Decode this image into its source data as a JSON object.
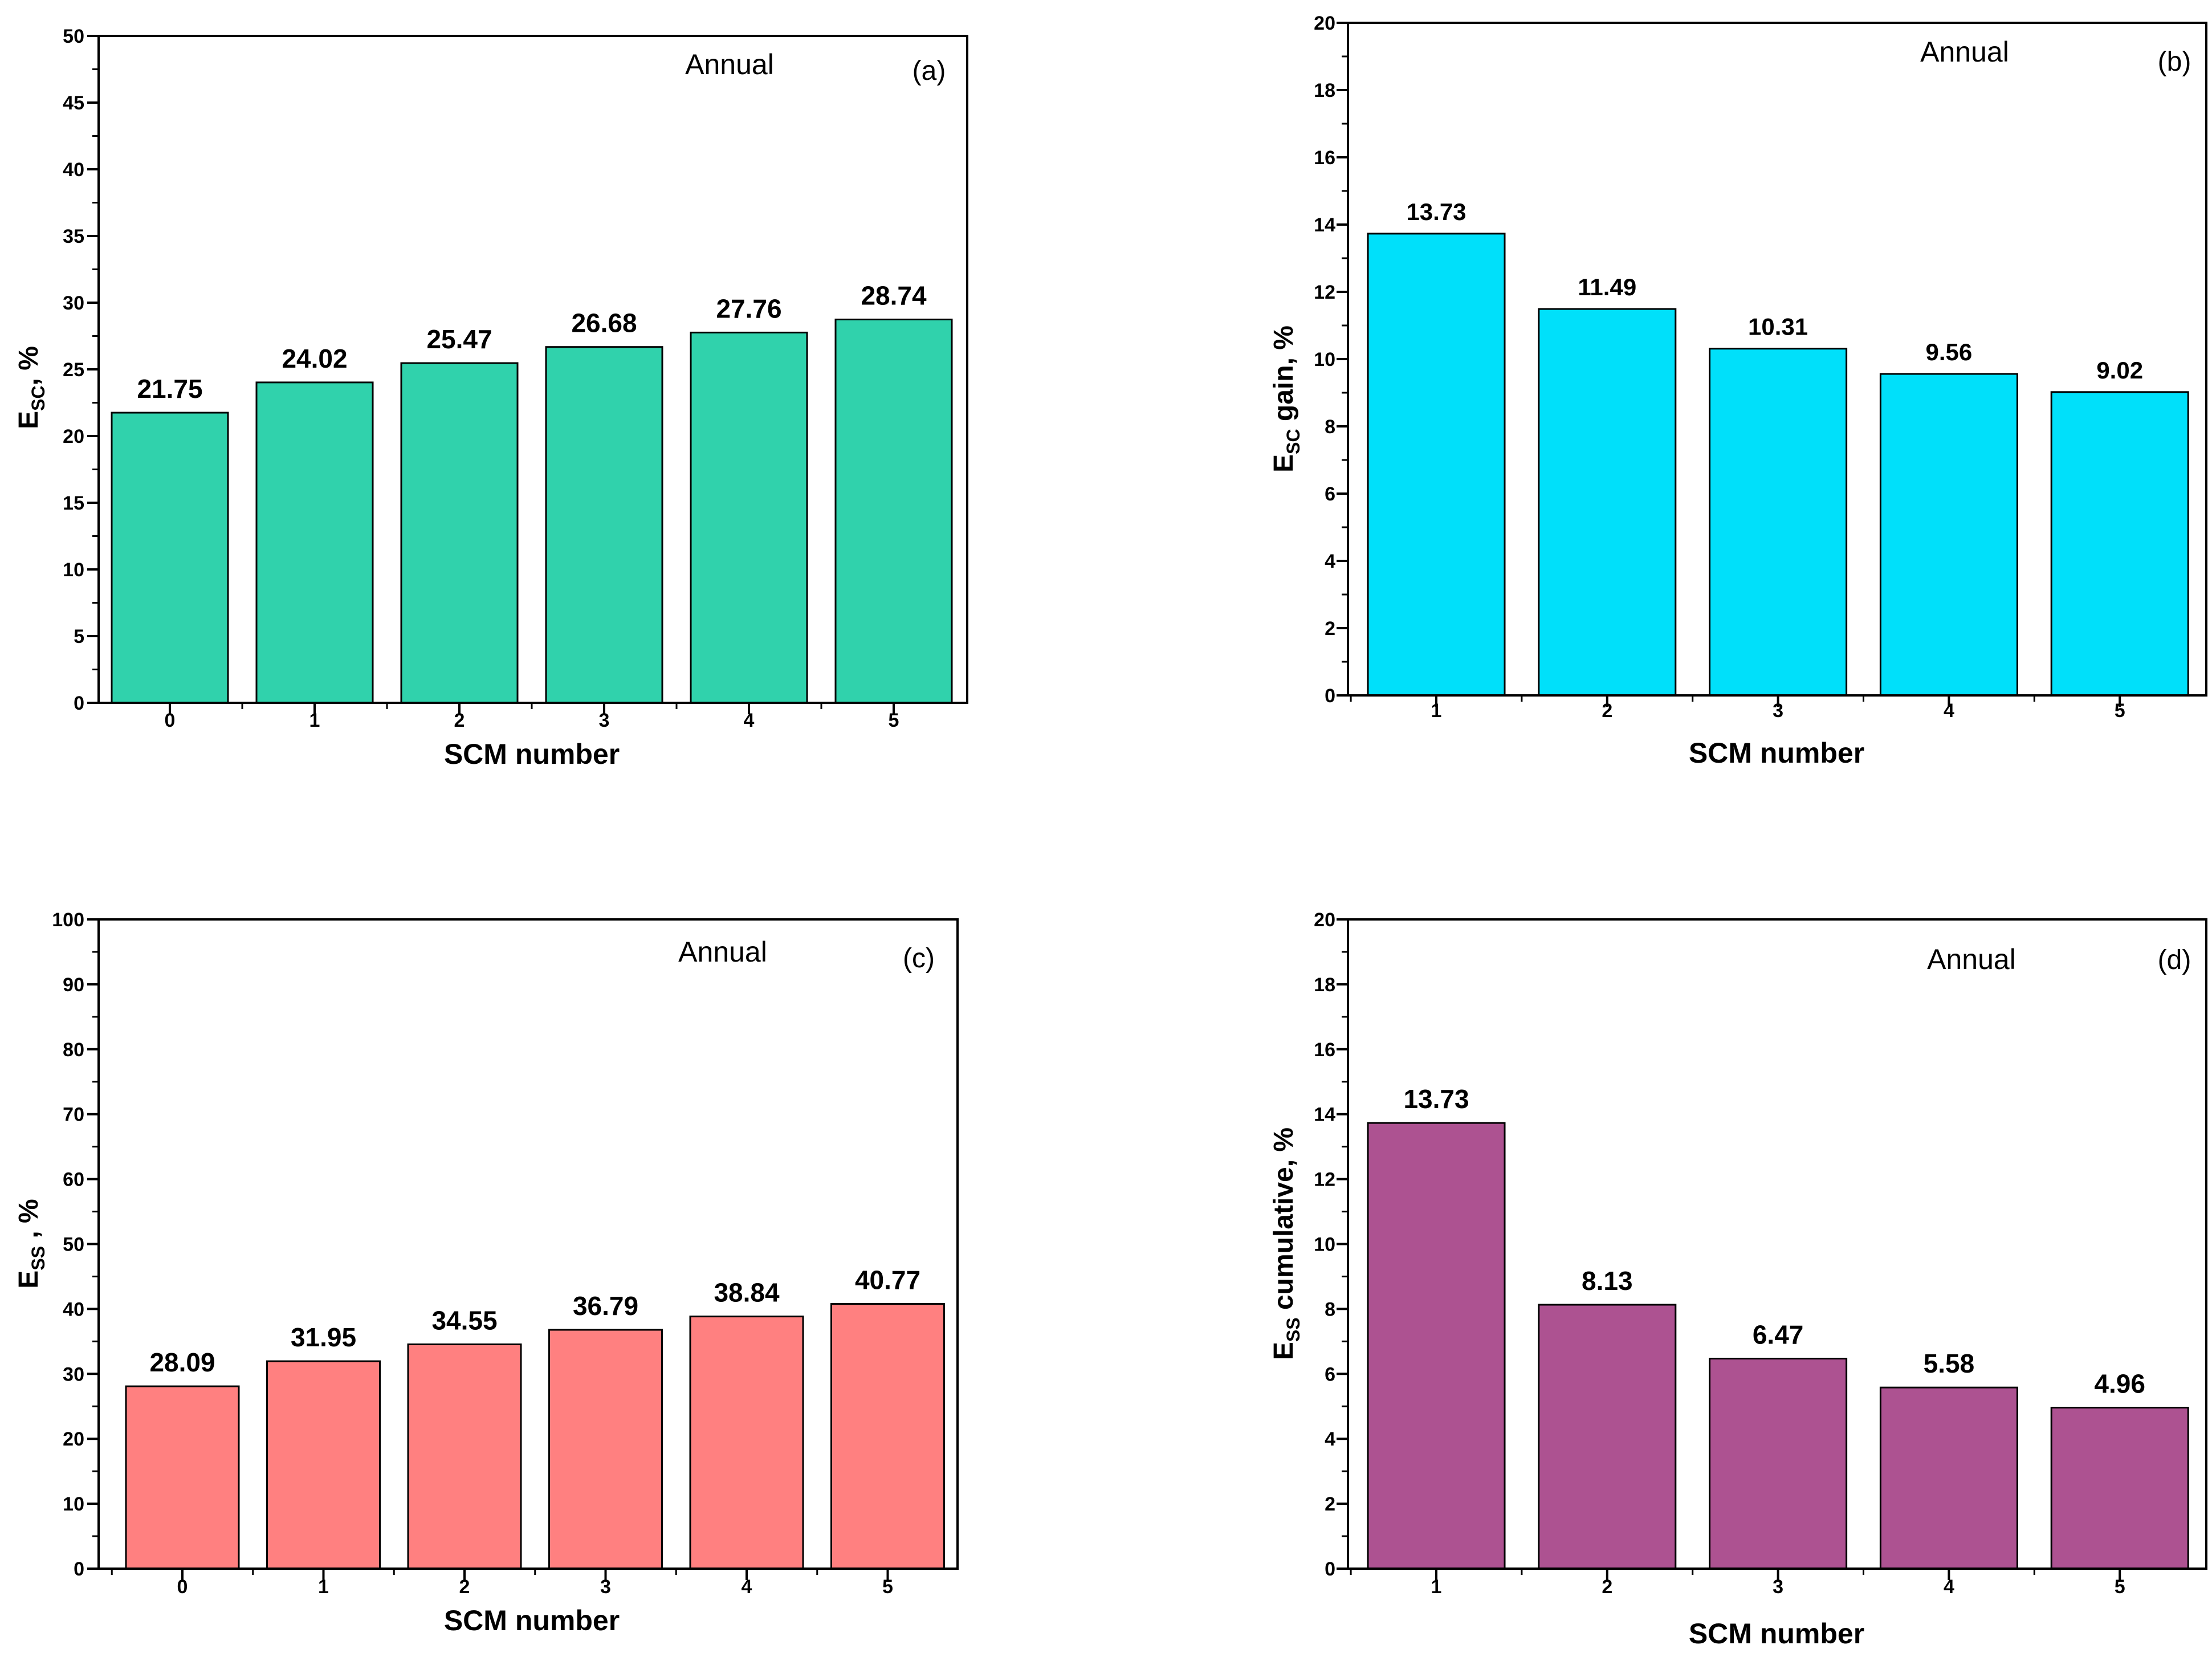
{
  "chart_data": [
    {
      "id": "a",
      "type": "bar",
      "panel_label": "(a)",
      "annotation": "Annual",
      "categories": [
        "0",
        "1",
        "2",
        "3",
        "4",
        "5"
      ],
      "values": [
        21.75,
        24.02,
        25.47,
        26.68,
        27.76,
        28.74
      ],
      "value_labels": [
        "21.75",
        "24.02",
        "25.47",
        "26.68",
        "27.76",
        "28.74"
      ],
      "xlabel": "SCM number",
      "ylabel": {
        "main": "E",
        "sub": "SC",
        "rest": ", %"
      },
      "ylim": [
        0,
        50
      ],
      "yticks": [
        "0",
        "5",
        "10",
        "15",
        "20",
        "25",
        "30",
        "35",
        "40",
        "45",
        "50"
      ],
      "bar_color": "#30D2AC",
      "label_weight": "bold"
    },
    {
      "id": "b",
      "type": "bar",
      "panel_label": "(b)",
      "annotation": "Annual",
      "categories": [
        "1",
        "2",
        "3",
        "4",
        "5"
      ],
      "values": [
        13.73,
        11.49,
        10.31,
        9.56,
        9.02
      ],
      "value_labels": [
        "13.73",
        "11.49",
        "10.31",
        "9.56",
        "9.02"
      ],
      "xlabel": "SCM number",
      "ylabel": {
        "main": "E",
        "sub": "SC",
        "rest": " gain, %"
      },
      "ylim": [
        0,
        20
      ],
      "yticks": [
        "0",
        "2",
        "4",
        "6",
        "8",
        "10",
        "12",
        "14",
        "16",
        "18",
        "20"
      ],
      "bar_color": "#00E0FA",
      "label_weight": "bold"
    },
    {
      "id": "c",
      "type": "bar",
      "panel_label": "(c)",
      "annotation": "Annual",
      "categories": [
        "0",
        "1",
        "2",
        "3",
        "4",
        "5"
      ],
      "values": [
        28.09,
        31.95,
        34.55,
        36.79,
        38.84,
        40.77
      ],
      "value_labels": [
        "28.09",
        "31.95",
        "34.55",
        "36.79",
        "38.84",
        "40.77"
      ],
      "xlabel": "SCM number",
      "ylabel": {
        "main": "E",
        "sub": "SS",
        "rest": " , %"
      },
      "ylim": [
        0,
        100
      ],
      "yticks": [
        "0",
        "10",
        "20",
        "30",
        "40",
        "50",
        "60",
        "70",
        "80",
        "90",
        "100"
      ],
      "bar_color": "#FF8080",
      "label_weight": "bold"
    },
    {
      "id": "d",
      "type": "bar",
      "panel_label": "(d)",
      "annotation": "Annual",
      "categories": [
        "1",
        "2",
        "3",
        "4",
        "5"
      ],
      "values": [
        13.73,
        8.13,
        6.47,
        5.58,
        4.96
      ],
      "value_labels": [
        "13.73",
        "8.13",
        "6.47",
        "5.58",
        "4.96"
      ],
      "xlabel": "SCM number",
      "ylabel": {
        "main": "E",
        "sub": "SS",
        "rest": " cumulative, %"
      },
      "ylim": [
        0,
        20
      ],
      "yticks": [
        "0",
        "2",
        "4",
        "6",
        "8",
        "10",
        "12",
        "14",
        "16",
        "18",
        "20"
      ],
      "bar_color": "#AD5291",
      "label_weight": "bold"
    }
  ]
}
